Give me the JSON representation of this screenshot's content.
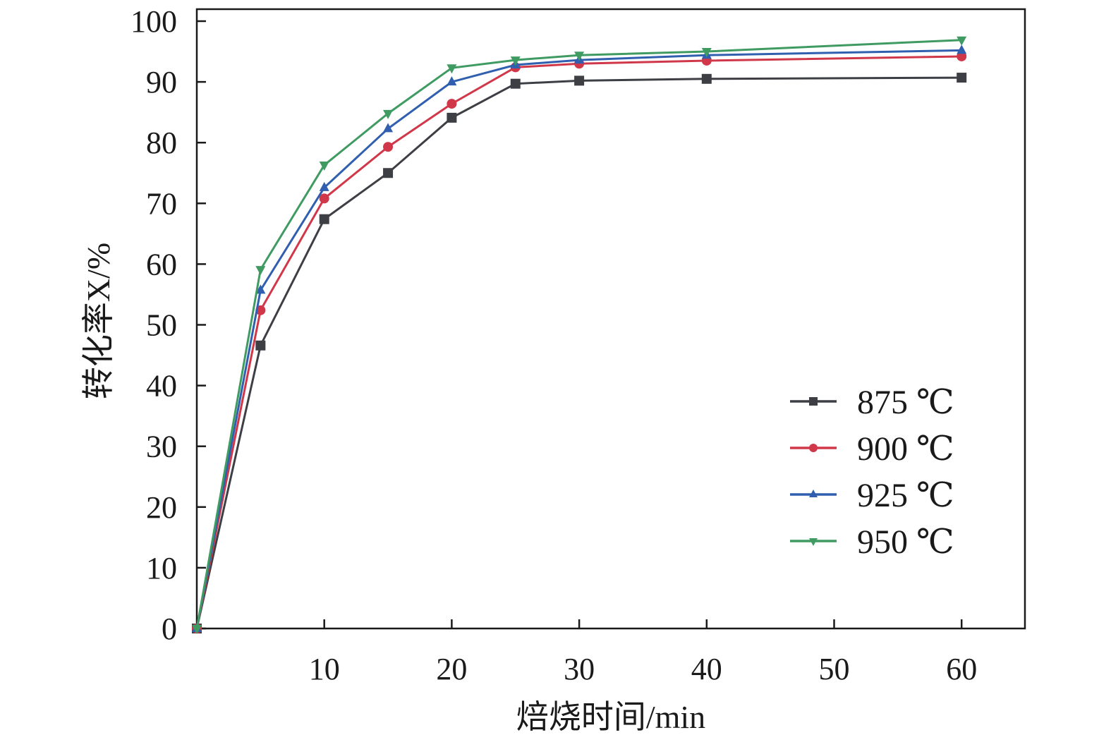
{
  "chart_data": {
    "type": "line",
    "title": "",
    "xlabel": "焙烧时间/min",
    "ylabel": "转化率X/%",
    "xlim": [
      0,
      65
    ],
    "ylim": [
      0,
      100
    ],
    "xticks": [
      10,
      20,
      30,
      40,
      50,
      60
    ],
    "yticks": [
      0,
      10,
      20,
      30,
      40,
      50,
      60,
      70,
      80,
      90,
      100
    ],
    "grid": false,
    "legend_position": "right",
    "x": [
      0,
      5,
      10,
      15,
      20,
      25,
      30,
      40,
      60
    ],
    "series": [
      {
        "name": "875 ℃",
        "color": "#3d3f45",
        "marker": "square",
        "values": [
          0,
          46.6,
          67.4,
          75.0,
          84.1,
          89.7,
          90.2,
          90.5,
          90.7
        ]
      },
      {
        "name": "900 ℃",
        "color": "#d0384a",
        "marker": "circle",
        "values": [
          0,
          52.4,
          70.8,
          79.3,
          86.4,
          92.4,
          93.0,
          93.5,
          94.2
        ]
      },
      {
        "name": "925 ℃",
        "color": "#2f5fae",
        "marker": "triangle-up",
        "values": [
          0,
          55.7,
          72.6,
          82.3,
          90.0,
          92.8,
          93.6,
          94.4,
          95.2
        ]
      },
      {
        "name": "950 ℃",
        "color": "#3f9b62",
        "marker": "triangle-down",
        "values": [
          0,
          59.1,
          76.3,
          84.8,
          92.3,
          93.6,
          94.4,
          95.0,
          96.9
        ]
      }
    ]
  }
}
